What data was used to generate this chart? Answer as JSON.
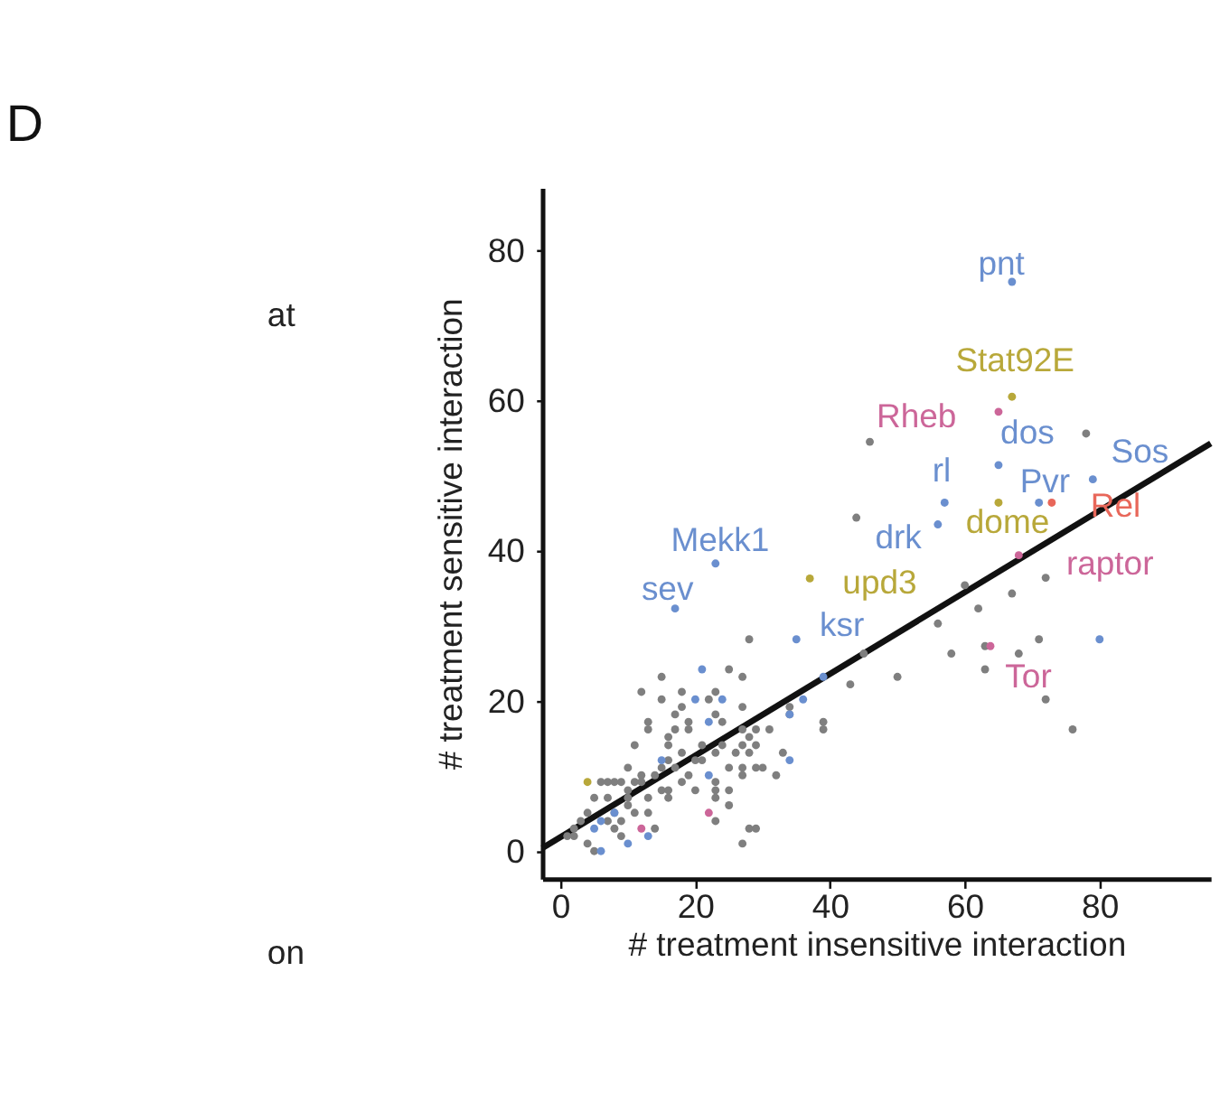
{
  "chart_data": {
    "type": "scatter",
    "title": "D",
    "xlabel": "# treatment insensitive interaction",
    "ylabel": "# treatment sensitive interaction",
    "annotations": [
      "at",
      "on"
    ],
    "xlim": [
      -2.7,
      96.5
    ],
    "ylim": [
      -3.7,
      88.3
    ],
    "xticks": [
      0,
      20,
      40,
      60,
      80
    ],
    "yticks": [
      0,
      20,
      40,
      60,
      80
    ],
    "grid": false,
    "marker": "circle",
    "series": [
      {
        "color": "#7f7f7f",
        "x": [
          45.9,
          78,
          43.9,
          60,
          67,
          72,
          62,
          56,
          71,
          63,
          58,
          68,
          63,
          50,
          43,
          45,
          72,
          76,
          28,
          15,
          25,
          27,
          12,
          18,
          23,
          15,
          18,
          22,
          17,
          23,
          24,
          27,
          34,
          34,
          39,
          39,
          13,
          13,
          17,
          19,
          19,
          16,
          16,
          11,
          10,
          14,
          12,
          18,
          21,
          24,
          27,
          28,
          29,
          31,
          26,
          28,
          29,
          27,
          25,
          27,
          29,
          30,
          27,
          32,
          33,
          23,
          21,
          20,
          17,
          19,
          18,
          16,
          15,
          12,
          11,
          10,
          8,
          6,
          7,
          9,
          15,
          16,
          16,
          23,
          23,
          25,
          23,
          25,
          20,
          13,
          10,
          10,
          7,
          5,
          11,
          13,
          8,
          4,
          3,
          2,
          1,
          7,
          9,
          14,
          8,
          9,
          4,
          5,
          23,
          28,
          29,
          27,
          2
        ],
        "values": [
          54.5,
          55.6,
          44.4,
          35.4,
          34.3,
          36.4,
          32.3,
          30.3,
          28.2,
          27.3,
          26.3,
          26.3,
          24.2,
          23.2,
          22.2,
          26.3,
          20.2,
          16.2,
          28.2,
          23.2,
          24.2,
          23.2,
          21.2,
          21.2,
          21.2,
          20.2,
          19.2,
          20.2,
          18.2,
          18.2,
          17.2,
          19.2,
          19.2,
          18.2,
          17.2,
          16.2,
          17.2,
          16.2,
          16.2,
          17.2,
          16.2,
          15.2,
          14.1,
          14.1,
          11.1,
          10.1,
          10.1,
          13.1,
          14.1,
          14.1,
          16.2,
          15.2,
          16.2,
          16.2,
          13.1,
          13.1,
          14.1,
          14.1,
          11.1,
          11.1,
          11.1,
          11.1,
          10.1,
          10.1,
          13.1,
          13.1,
          12.1,
          12.1,
          11.1,
          10.1,
          9.2,
          12.1,
          11.1,
          9.2,
          9.2,
          8.1,
          9.2,
          9.2,
          9.2,
          9.2,
          8.1,
          8.1,
          7.1,
          9.2,
          8.1,
          8.1,
          7.1,
          6.1,
          8.1,
          7.1,
          7.1,
          6.1,
          7.1,
          7.1,
          5.1,
          5.1,
          5.1,
          5.1,
          4,
          3,
          2,
          4,
          4,
          3,
          3,
          2,
          1,
          0,
          4,
          3,
          3,
          1,
          2
        ]
      },
      {
        "color": "#6a8fcf",
        "x": [
          21,
          20,
          24,
          22,
          34,
          36,
          39,
          34,
          15,
          22,
          80,
          8,
          6,
          5,
          10,
          13,
          6
        ],
        "values": [
          24.2,
          20.2,
          20.2,
          17.2,
          18.2,
          20.2,
          23.2,
          12.1,
          12.1,
          10.1,
          28.2,
          5.1,
          4,
          3,
          1,
          2,
          0
        ]
      },
      {
        "color": "#b8a83a",
        "x": [
          4
        ],
        "values": [
          9.2
        ]
      },
      {
        "color": "#cc6699",
        "x": [
          12,
          22
        ],
        "values": [
          3,
          5.1
        ]
      },
      {
        "type": "line",
        "marker": "none",
        "color": "#111111",
        "x": [
          -2.7,
          96.5
        ],
        "values": [
          0.4,
          54.3
        ]
      },
      {
        "name": "pnt",
        "color": "#6a8fcf",
        "x": [
          67
        ],
        "values": [
          75.8
        ]
      },
      {
        "name": "Stat92E",
        "color": "#b8a83a",
        "x": [
          67
        ],
        "values": [
          60.5
        ]
      },
      {
        "name": "Rheb",
        "color": "#cc6699",
        "x": [
          65
        ],
        "values": [
          58.5
        ]
      },
      {
        "name": "dos",
        "color": "#6a8fcf",
        "x": [
          65
        ],
        "values": [
          51.4
        ]
      },
      {
        "name": "Sos",
        "color": "#6a8fcf",
        "x": [
          79
        ],
        "values": [
          49.5
        ]
      },
      {
        "name": "rl",
        "color": "#6a8fcf",
        "x": [
          57
        ],
        "values": [
          46.4
        ]
      },
      {
        "name": "Pvr",
        "color": "#6a8fcf",
        "x": [
          71
        ],
        "values": [
          46.4
        ]
      },
      {
        "name": "Rel",
        "color": "#e8675a",
        "x": [
          72.9
        ],
        "values": [
          46.4
        ]
      },
      {
        "name": "dome",
        "color": "#b8a83a",
        "x": [
          65
        ],
        "values": [
          46.4
        ]
      },
      {
        "name": "drk",
        "color": "#6a8fcf",
        "x": [
          56
        ],
        "values": [
          43.5
        ]
      },
      {
        "name": "Mekk1",
        "color": "#6a8fcf",
        "x": [
          23
        ],
        "values": [
          38.3
        ]
      },
      {
        "name": "raptor",
        "color": "#cc6699",
        "x": [
          68
        ],
        "values": [
          39.4
        ]
      },
      {
        "name": "upd3",
        "color": "#b8a83a",
        "x": [
          37
        ],
        "values": [
          36.3
        ]
      },
      {
        "name": "sev",
        "color": "#6a8fcf",
        "x": [
          17
        ],
        "values": [
          32.3
        ]
      },
      {
        "name": "ksr",
        "color": "#6a8fcf",
        "x": [
          35
        ],
        "values": [
          28.2
        ]
      },
      {
        "name": "Tor",
        "color": "#cc6699",
        "x": [
          63.8
        ],
        "values": [
          27.3
        ]
      }
    ]
  }
}
